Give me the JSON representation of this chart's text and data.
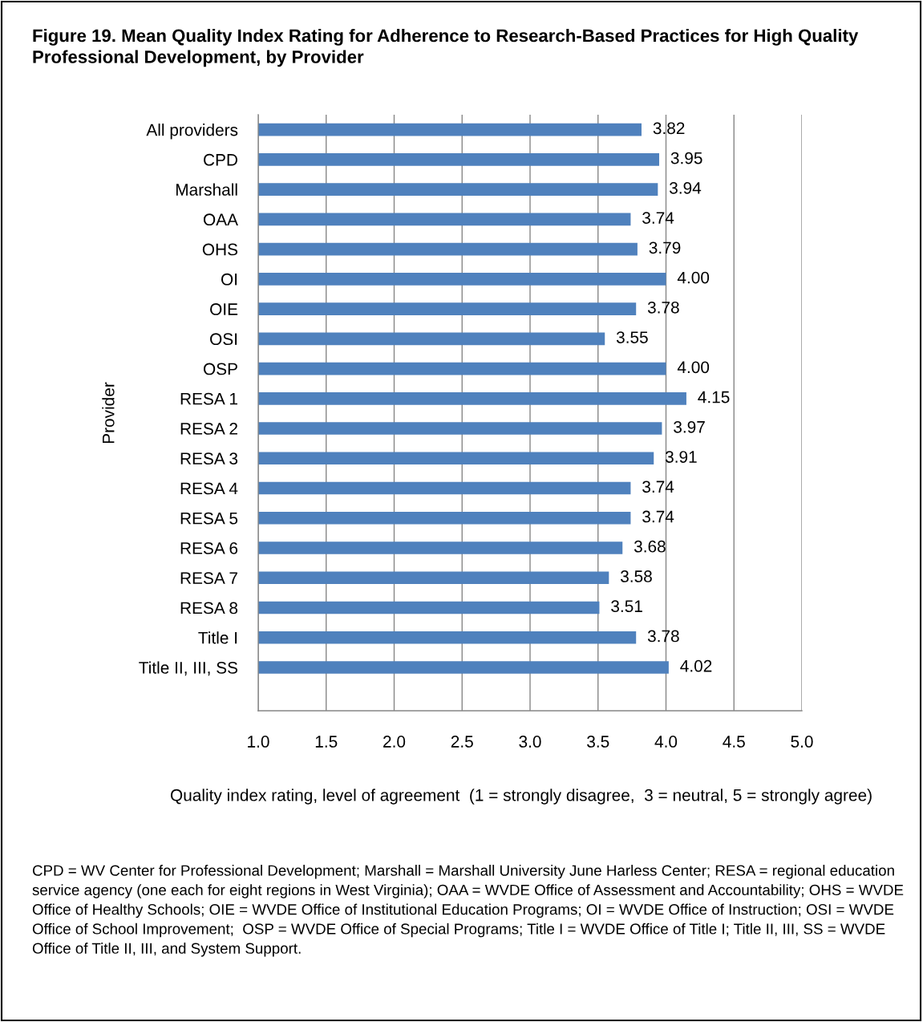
{
  "chart_data": {
    "type": "bar",
    "orientation": "horizontal",
    "title": "Figure 19. Mean Quality Index Rating for Adherence to Research-Based Practices for High Quality Professional Development, by Provider",
    "xlabel": "Quality index rating, level of agreement  (1 = strongly disagree,  3 = neutral, 5 = strongly agree)",
    "ylabel": "Provider",
    "categories": [
      "All providers",
      "CPD",
      "Marshall",
      "OAA",
      "OHS",
      "OI",
      "OIE",
      "OSI",
      "OSP",
      "RESA 1",
      "RESA 2",
      "RESA 3",
      "RESA 4",
      "RESA 5",
      "RESA 6",
      "RESA 7",
      "RESA 8",
      "Title I",
      "Title II, III, SS"
    ],
    "values": [
      3.82,
      3.95,
      3.94,
      3.74,
      3.79,
      4.0,
      3.78,
      3.55,
      4.0,
      4.15,
      3.97,
      3.91,
      3.74,
      3.74,
      3.68,
      3.58,
      3.51,
      3.78,
      4.02
    ],
    "value_labels": [
      "3.82",
      "3.95",
      "3.94",
      "3.74",
      "3.79",
      "4.00",
      "3.78",
      "3.55",
      "4.00",
      "4.15",
      "3.97",
      "3.91",
      "3.74",
      "3.74",
      "3.68",
      "3.58",
      "3.51",
      "3.78",
      "4.02"
    ],
    "color": "#4f81bd",
    "xlim": [
      1,
      5
    ],
    "xticks": [
      {
        "value": 1,
        "label": "1.0"
      },
      {
        "value": 1.5,
        "label": "1.5"
      },
      {
        "value": 2,
        "label": "2.0"
      },
      {
        "value": 2.5,
        "label": "2.5"
      },
      {
        "value": 3,
        "label": "3.0"
      },
      {
        "value": 3.5,
        "label": "3.5"
      },
      {
        "value": 4,
        "label": "4.0"
      },
      {
        "value": 4.5,
        "label": "4.5"
      },
      {
        "value": 5,
        "label": "5.0"
      }
    ],
    "grid": "x",
    "annotations": [
      "CPD = WV Center for Professional Development; Marshall = Marshall University June Harless Center; RESA = regional education service agency (one each for eight regions in West Virginia); OAA = WVDE Office of Assessment and Accountability; OHS = WVDE Office of Healthy Schools; OIE = WVDE Office of Institutional Education Programs; OI = WVDE Office of Instruction; OSI = WVDE Office of School Improvement;  OSP = WVDE Office of Special Programs; Title I = WVDE Office of Title I; Title II, III, SS = WVDE Office of Title II, III, and System Support."
    ]
  }
}
